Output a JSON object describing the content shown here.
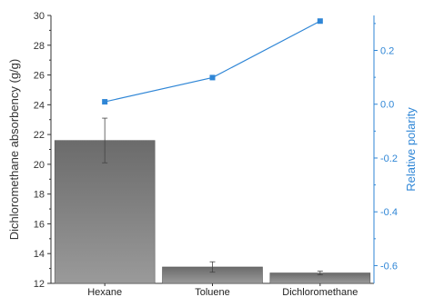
{
  "chart_data": {
    "type": "bar",
    "categories": [
      "Hexane",
      "Toluene",
      "Dichloromethane"
    ],
    "series": [
      {
        "type": "bar",
        "axis": "left",
        "values": [
          21.6,
          13.1,
          12.7
        ],
        "errors": [
          1.5,
          0.35,
          0.12
        ]
      },
      {
        "type": "line",
        "axis": "right",
        "values": [
          0.009,
          0.099,
          0.309
        ]
      }
    ],
    "ylabel": "Dichloromethane absorbency (g/g)",
    "y2label": "Relative polarity",
    "ylim": [
      12,
      30
    ],
    "y2lim": [
      -0.666,
      0.33
    ],
    "yticks": [
      "12",
      "14",
      "16",
      "18",
      "20",
      "22",
      "24",
      "26",
      "28",
      "30"
    ],
    "y2ticks": [
      "-0.6",
      "-0.4",
      "-0.2",
      "0.0",
      "0.2"
    ],
    "colors": {
      "bar": "#808080",
      "bar_top": "#6e6e6e",
      "line": "#2f86d6",
      "right_axis": "#2f86d6",
      "axis": "#333333"
    }
  }
}
